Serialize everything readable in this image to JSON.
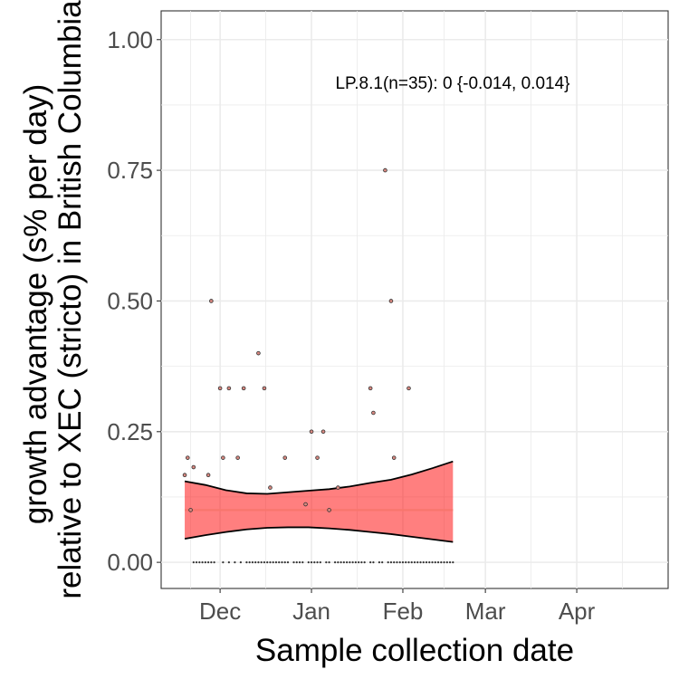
{
  "chart_data": {
    "type": "scatter",
    "xlabel": "Sample collection date",
    "ylabel_lines": [
      "growth advantage (s% per day)",
      "relative to XEC (stricto) in British Columbia"
    ],
    "x_ticks": [
      {
        "date": "2024-12-01",
        "label": "Dec"
      },
      {
        "date": "2025-01-01",
        "label": "Jan"
      },
      {
        "date": "2025-02-01",
        "label": "Feb"
      },
      {
        "date": "2025-03-01",
        "label": "Mar"
      },
      {
        "date": "2025-04-01",
        "label": "Apr"
      }
    ],
    "xlim": [
      "2024-11-11",
      "2025-05-02"
    ],
    "ylim": [
      -0.05,
      1.055
    ],
    "y_ticks": [
      0.0,
      0.25,
      0.5,
      0.75,
      1.0
    ],
    "y_tick_labels": [
      "0.00",
      "0.25",
      "0.50",
      "0.75",
      "1.00"
    ],
    "grid": true,
    "annotation": "LP.8.1(n=35): 0 {-0.014, 0.014}",
    "colors": {
      "fit": "#f8766d",
      "ribbon": "#ff0000",
      "points": "#555555",
      "grid": "#ebebeb"
    },
    "fit_line": {
      "x": [
        "2024-11-19",
        "2025-02-18"
      ],
      "y": [
        0.1,
        0.1
      ]
    },
    "ribbon": {
      "x": [
        "2024-11-19",
        "2024-11-26",
        "2024-12-03",
        "2024-12-10",
        "2024-12-17",
        "2024-12-24",
        "2024-12-31",
        "2025-01-07",
        "2025-01-14",
        "2025-01-21",
        "2025-01-28",
        "2025-02-04",
        "2025-02-11",
        "2025-02-18"
      ],
      "lower": [
        0.045,
        0.052,
        0.058,
        0.063,
        0.066,
        0.067,
        0.067,
        0.065,
        0.062,
        0.058,
        0.054,
        0.049,
        0.044,
        0.039
      ],
      "upper": [
        0.155,
        0.148,
        0.138,
        0.132,
        0.131,
        0.134,
        0.137,
        0.14,
        0.145,
        0.152,
        0.158,
        0.168,
        0.18,
        0.193
      ]
    },
    "points": [
      {
        "x": "2024-11-19",
        "y": 0.167
      },
      {
        "x": "2024-11-20",
        "y": 0.2
      },
      {
        "x": "2024-11-21",
        "y": 0.1
      },
      {
        "x": "2024-11-22",
        "y": 0.182
      },
      {
        "x": "2024-11-27",
        "y": 0.167
      },
      {
        "x": "2024-11-28",
        "y": 0.5
      },
      {
        "x": "2024-12-01",
        "y": 0.333
      },
      {
        "x": "2024-12-02",
        "y": 0.2
      },
      {
        "x": "2024-12-04",
        "y": 0.333
      },
      {
        "x": "2024-12-07",
        "y": 0.2
      },
      {
        "x": "2024-12-09",
        "y": 0.333
      },
      {
        "x": "2024-12-14",
        "y": 0.4
      },
      {
        "x": "2024-12-16",
        "y": 0.333
      },
      {
        "x": "2024-12-18",
        "y": 0.143
      },
      {
        "x": "2024-12-23",
        "y": 0.2
      },
      {
        "x": "2024-12-30",
        "y": 0.111
      },
      {
        "x": "2025-01-01",
        "y": 0.25
      },
      {
        "x": "2025-01-03",
        "y": 0.2
      },
      {
        "x": "2025-01-05",
        "y": 0.25
      },
      {
        "x": "2025-01-07",
        "y": 0.1
      },
      {
        "x": "2025-01-10",
        "y": 0.143
      },
      {
        "x": "2025-01-21",
        "y": 0.333
      },
      {
        "x": "2025-01-22",
        "y": 0.286
      },
      {
        "x": "2025-01-26",
        "y": 0.75
      },
      {
        "x": "2025-01-28",
        "y": 0.5
      },
      {
        "x": "2025-01-29",
        "y": 0.2
      },
      {
        "x": "2025-02-03",
        "y": 0.333
      }
    ],
    "zero_point_dates": [
      "2024-11-22",
      "2024-11-23",
      "2024-11-24",
      "2024-11-25",
      "2024-11-26",
      "2024-11-27",
      "2024-11-28",
      "2024-11-29",
      "2024-12-02",
      "2024-12-04",
      "2024-12-06",
      "2024-12-08",
      "2024-12-10",
      "2024-12-11",
      "2024-12-12",
      "2024-12-13",
      "2024-12-14",
      "2024-12-15",
      "2024-12-16",
      "2024-12-17",
      "2024-12-18",
      "2024-12-19",
      "2024-12-20",
      "2024-12-21",
      "2024-12-22",
      "2024-12-23",
      "2024-12-24",
      "2024-12-26",
      "2024-12-27",
      "2024-12-28",
      "2024-12-29",
      "2024-12-31",
      "2025-01-01",
      "2025-01-02",
      "2025-01-03",
      "2025-01-04",
      "2025-01-06",
      "2025-01-07",
      "2025-01-09",
      "2025-01-10",
      "2025-01-11",
      "2025-01-12",
      "2025-01-13",
      "2025-01-14",
      "2025-01-15",
      "2025-01-16",
      "2025-01-17",
      "2025-01-18",
      "2025-01-19",
      "2025-01-21",
      "2025-01-22",
      "2025-01-24",
      "2025-01-25",
      "2025-01-27",
      "2025-01-28",
      "2025-01-29",
      "2025-01-30",
      "2025-01-31",
      "2025-02-01",
      "2025-02-02",
      "2025-02-03",
      "2025-02-04",
      "2025-02-05",
      "2025-02-06",
      "2025-02-07",
      "2025-02-08",
      "2025-02-09",
      "2025-02-10",
      "2025-02-11",
      "2025-02-12",
      "2025-02-13",
      "2025-02-14",
      "2025-02-15",
      "2025-02-16",
      "2025-02-17",
      "2025-02-18"
    ]
  }
}
